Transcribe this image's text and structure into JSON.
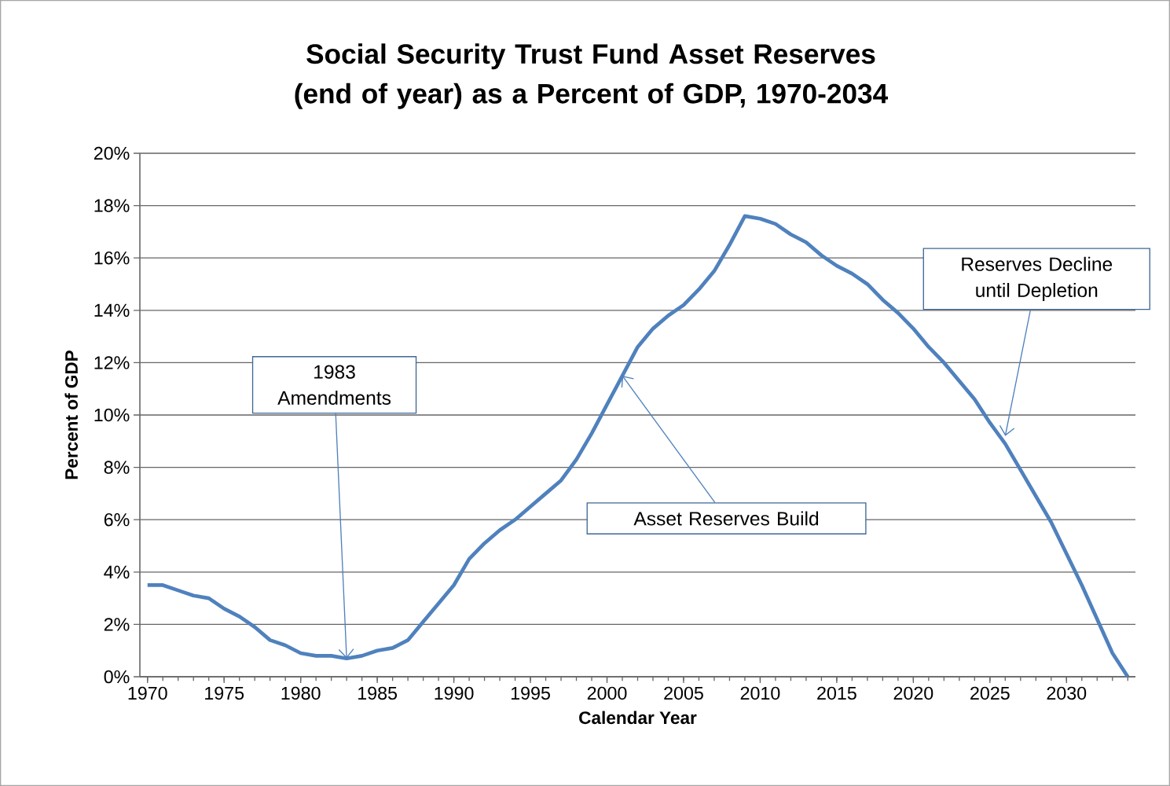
{
  "chart_data": {
    "type": "line",
    "title": "Social Security Trust Fund Asset Reserves (end of year) as a Percent of GDP, 1970-2034",
    "xlabel": "Calendar Year",
    "ylabel": "Percent of GDP",
    "x": [
      1970,
      1971,
      1972,
      1973,
      1974,
      1975,
      1976,
      1977,
      1978,
      1979,
      1980,
      1981,
      1982,
      1983,
      1984,
      1985,
      1986,
      1987,
      1988,
      1989,
      1990,
      1991,
      1992,
      1993,
      1994,
      1995,
      1996,
      1997,
      1998,
      1999,
      2000,
      2001,
      2002,
      2003,
      2004,
      2005,
      2006,
      2007,
      2008,
      2009,
      2010,
      2011,
      2012,
      2013,
      2014,
      2015,
      2016,
      2017,
      2018,
      2019,
      2020,
      2021,
      2022,
      2023,
      2024,
      2025,
      2026,
      2027,
      2028,
      2029,
      2030,
      2031,
      2032,
      2033,
      2034
    ],
    "series": [
      {
        "color": "#4f81bd",
        "values": [
          3.5,
          3.5,
          3.3,
          3.1,
          3.0,
          2.6,
          2.3,
          1.9,
          1.4,
          1.2,
          0.9,
          0.8,
          0.8,
          0.7,
          0.8,
          1.0,
          1.1,
          1.4,
          2.1,
          2.8,
          3.5,
          4.5,
          5.1,
          5.6,
          6.0,
          6.5,
          7.0,
          7.5,
          8.3,
          9.3,
          10.4,
          11.5,
          12.6,
          13.3,
          13.8,
          14.2,
          14.8,
          15.5,
          16.5,
          17.6,
          17.5,
          17.3,
          16.9,
          16.6,
          16.1,
          15.7,
          15.4,
          15.0,
          14.4,
          13.9,
          13.3,
          12.6,
          12.0,
          11.3,
          10.6,
          9.7,
          8.9,
          7.9,
          6.9,
          5.9,
          4.7,
          3.5,
          2.2,
          0.9,
          0.0
        ]
      }
    ],
    "xlim": [
      1969.5,
      2034.5
    ],
    "xticks": [
      1970,
      1975,
      1980,
      1985,
      1990,
      1995,
      2000,
      2005,
      2010,
      2015,
      2020,
      2025,
      2030
    ],
    "ylim": [
      0,
      20
    ],
    "yticks": [
      {
        "value": 0,
        "label": "0%"
      },
      {
        "value": 2,
        "label": "2%"
      },
      {
        "value": 4,
        "label": "4%"
      },
      {
        "value": 6,
        "label": "6%"
      },
      {
        "value": 8,
        "label": "8%"
      },
      {
        "value": 10,
        "label": "10%"
      },
      {
        "value": 12,
        "label": "12%"
      },
      {
        "value": 14,
        "label": "14%"
      },
      {
        "value": 16,
        "label": "16%"
      },
      {
        "value": 18,
        "label": "18%"
      },
      {
        "value": 20,
        "label": "20%"
      }
    ],
    "grid": "y",
    "line_style": "solid",
    "marker": "none",
    "annotations": [
      {
        "text": "1983 Amendments",
        "x": 1983,
        "y": 0.7
      },
      {
        "text": "Asset Reserves Build",
        "x": 2001,
        "y": 11.5
      },
      {
        "text": "Reserves Decline until Depletion",
        "x": 2026,
        "y": 9.2
      }
    ]
  }
}
